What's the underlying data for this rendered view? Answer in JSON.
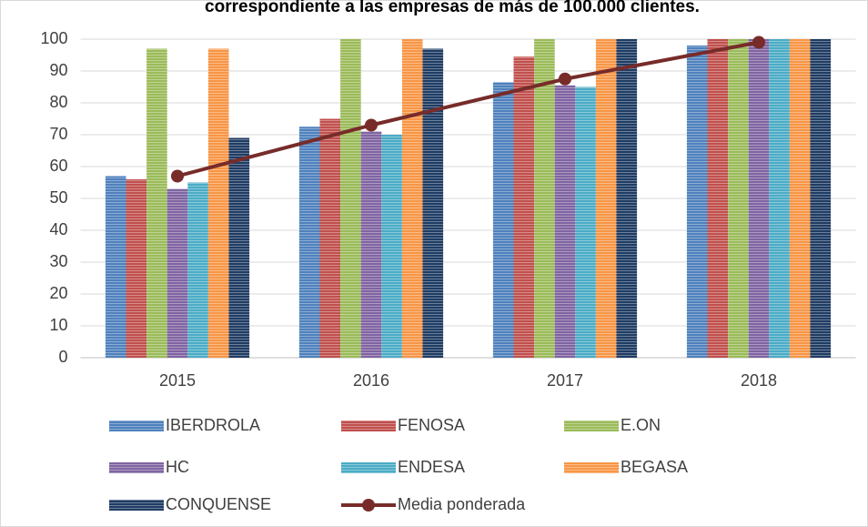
{
  "chart_data": {
    "type": "bar",
    "title": "correspondiente a las empresas de más de 100.000 clientes.",
    "categories": [
      "2015",
      "2016",
      "2017",
      "2018"
    ],
    "series": [
      {
        "name": "IBERDROLA",
        "color": "#4f81bd",
        "values": [
          57,
          72.5,
          86.5,
          98
        ]
      },
      {
        "name": "FENOSA",
        "color": "#c0504d",
        "values": [
          56,
          75,
          94.5,
          100
        ]
      },
      {
        "name": "E.ON",
        "color": "#9bbb59",
        "values": [
          97,
          100,
          100,
          100
        ]
      },
      {
        "name": "HC",
        "color": "#8064a2",
        "values": [
          53,
          71,
          85.5,
          100
        ]
      },
      {
        "name": "ENDESA",
        "color": "#4bacc6",
        "values": [
          55,
          70,
          85,
          100
        ]
      },
      {
        "name": "BEGASA",
        "color": "#f79646",
        "values": [
          97,
          100,
          100,
          100
        ]
      },
      {
        "name": "CONQUENSE",
        "color": "#1f3c64",
        "values": [
          69,
          97,
          100,
          100
        ]
      },
      {
        "name": "Media ponderada",
        "color": "#772c2a",
        "type": "line",
        "values": [
          57,
          73,
          87.5,
          99
        ]
      }
    ],
    "ylim": [
      0,
      100
    ],
    "yticks": [
      0,
      10,
      20,
      30,
      40,
      50,
      60,
      70,
      80,
      90,
      100
    ],
    "grid": true,
    "legend": "bottom"
  }
}
